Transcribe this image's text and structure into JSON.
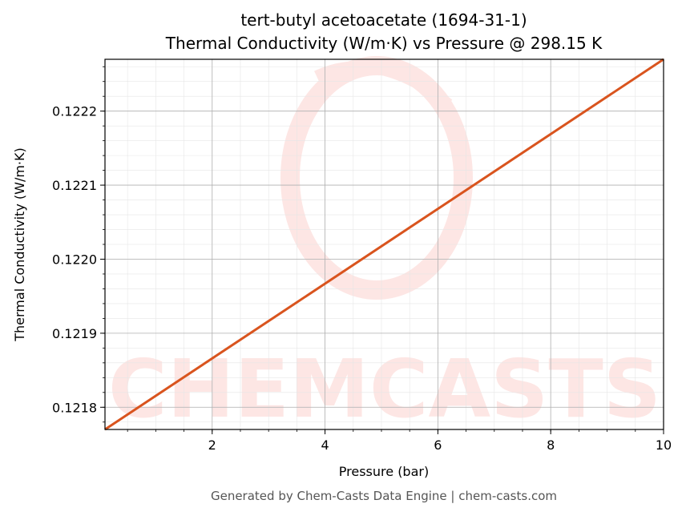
{
  "chart_data": {
    "type": "line",
    "title": "tert-butyl acetoacetate (1694-31-1)",
    "subtitle": "Thermal Conductivity (W/m·K) vs Pressure @ 298.15 K",
    "xlabel": "Pressure (bar)",
    "ylabel": "Thermal Conductivity (W/m·K)",
    "xlim": [
      0.1,
      10
    ],
    "ylim": [
      0.12177,
      0.12227
    ],
    "x_ticks": [
      2,
      4,
      6,
      8,
      10
    ],
    "x_tick_labels": [
      "2",
      "4",
      "6",
      "8",
      "10"
    ],
    "y_ticks": [
      0.1218,
      0.1219,
      0.122,
      0.1221,
      0.1222
    ],
    "y_tick_labels": [
      "0.1218",
      "0.1219",
      "0.1220",
      "0.1221",
      "0.1222"
    ],
    "grid": true,
    "series": [
      {
        "color": "#d9541e",
        "x": [
          0.1,
          10
        ],
        "y": [
          0.12177,
          0.12227
        ]
      }
    ]
  },
  "footer": "Generated by Chem-Casts Data Engine | chem-casts.com",
  "watermark": "CHEMCASTS",
  "colors": {
    "line": "#d9541e",
    "watermark": "#fde6e4",
    "grid_major": "#b0b0b0",
    "grid_minor": "#e6e6e6"
  }
}
